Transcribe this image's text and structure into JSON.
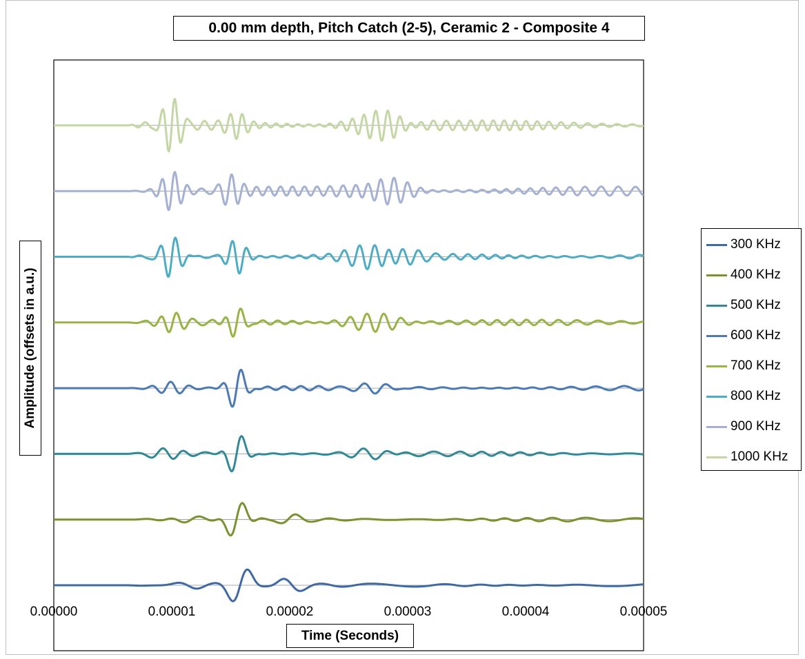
{
  "chart_data": {
    "type": "line",
    "title": "0.00 mm depth, Pitch Catch (2-5), Ceramic  2 -  Composite 4",
    "xlabel": "Time (Seconds)",
    "ylabel": "Amplitude (offsets in a.u.)",
    "xlim": [
      0,
      5e-05
    ],
    "x_ticks": [
      "0.00000",
      "0.00001",
      "0.00002",
      "0.00003",
      "0.00004",
      "0.00005"
    ],
    "grid": false,
    "legend_position": "right",
    "y_offsets": "each series plotted on its own vertical baseline, 300 KHz at bottom to 1000 KHz at top",
    "series": [
      {
        "name": "300 KHz",
        "color": "#3d6aa6",
        "freq_khz": 300,
        "packets": [
          {
            "t": 1.58e-05,
            "width": 1.2e-06,
            "amp": 1.0
          },
          {
            "t": 2e-05,
            "width": 1.5e-06,
            "amp": 0.35
          },
          {
            "t": 1.2e-05,
            "width": 2e-06,
            "amp": 0.15
          }
        ],
        "noise": 0.07
      },
      {
        "name": "400 KHz",
        "color": "#79922e",
        "freq_khz": 400,
        "packets": [
          {
            "t": 1.55e-05,
            "width": 1.1e-06,
            "amp": 1.0
          },
          {
            "t": 2e-05,
            "width": 1.6e-06,
            "amp": 0.3
          },
          {
            "t": 1.1e-05,
            "width": 2e-06,
            "amp": 0.12
          }
        ],
        "noise": 0.08
      },
      {
        "name": "500 KHz",
        "color": "#2f8998",
        "freq_khz": 500,
        "packets": [
          {
            "t": 1.55e-05,
            "width": 1e-06,
            "amp": 1.0
          },
          {
            "t": 1e-05,
            "width": 1.5e-06,
            "amp": 0.3
          },
          {
            "t": 2.7e-05,
            "width": 2.5e-06,
            "amp": 0.2
          }
        ],
        "noise": 0.1
      },
      {
        "name": "600 KHz",
        "color": "#4a79b7",
        "freq_khz": 600,
        "packets": [
          {
            "t": 1.55e-05,
            "width": 1e-06,
            "amp": 1.0
          },
          {
            "t": 1e-05,
            "width": 1.5e-06,
            "amp": 0.3
          },
          {
            "t": 2.7e-05,
            "width": 2.5e-06,
            "amp": 0.15
          }
        ],
        "noise": 0.1
      },
      {
        "name": "700 KHz",
        "color": "#96b43f",
        "freq_khz": 700,
        "packets": [
          {
            "t": 1.55e-05,
            "width": 1e-06,
            "amp": 0.8
          },
          {
            "t": 1e-05,
            "width": 1.2e-06,
            "amp": 0.55
          },
          {
            "t": 2.7e-05,
            "width": 3e-06,
            "amp": 0.4
          }
        ],
        "noise": 0.12
      },
      {
        "name": "800 KHz",
        "color": "#4bacc6",
        "freq_khz": 800,
        "packets": [
          {
            "t": 1e-05,
            "width": 1.1e-06,
            "amp": 0.85
          },
          {
            "t": 1.55e-05,
            "width": 1e-06,
            "amp": 0.75
          },
          {
            "t": 2.75e-05,
            "width": 3e-06,
            "amp": 0.5
          }
        ],
        "noise": 0.15
      },
      {
        "name": "900 KHz",
        "color": "#a4b0d4",
        "freq_khz": 900,
        "packets": [
          {
            "t": 1e-05,
            "width": 1.1e-06,
            "amp": 0.95
          },
          {
            "t": 1.5e-05,
            "width": 1e-06,
            "amp": 0.6
          },
          {
            "t": 2.8e-05,
            "width": 3e-06,
            "amp": 0.55
          }
        ],
        "noise": 0.2
      },
      {
        "name": "1000 KHz",
        "color": "#c3d6a4",
        "freq_khz": 1000,
        "packets": [
          {
            "t": 1e-05,
            "width": 1.1e-06,
            "amp": 1.0
          },
          {
            "t": 1.55e-05,
            "width": 1e-06,
            "amp": 0.45
          },
          {
            "t": 2.75e-05,
            "width": 3e-06,
            "amp": 0.6
          }
        ],
        "noise": 0.22
      }
    ]
  }
}
